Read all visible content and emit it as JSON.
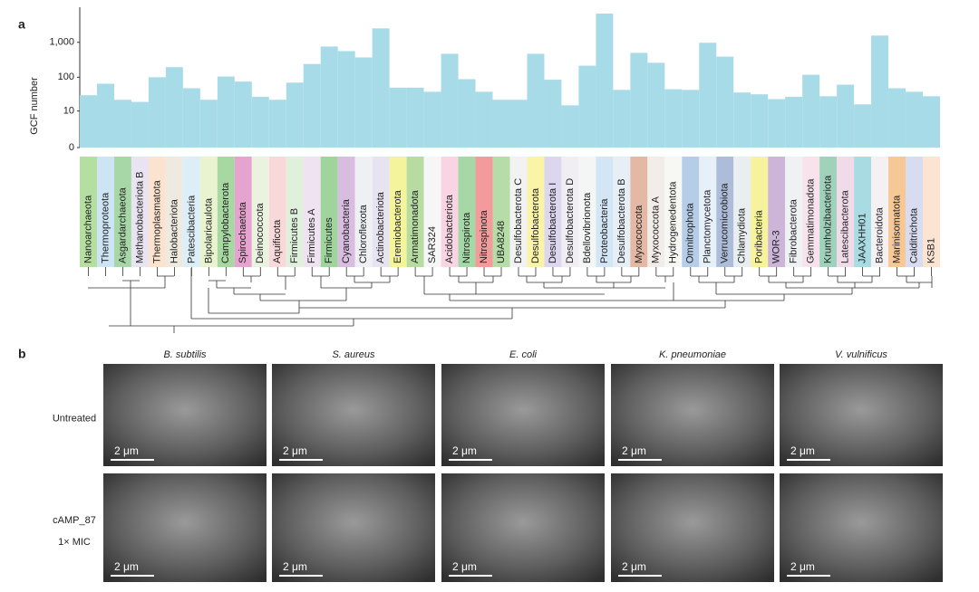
{
  "panel_labels": [
    "a",
    "b"
  ],
  "chart_data": {
    "type": "bar",
    "ylabel": "GCF number",
    "yscale": "log1p",
    "ylim": [
      0,
      10000
    ],
    "yticks": [
      0,
      10,
      100,
      {
        "value": 1000,
        "label": "1,000"
      }
    ],
    "color": "#a8dbe8",
    "categories": [
      "Nanoarchaeota",
      "Thermoproteota",
      "Asgardarchaeota",
      "Methanobacteriota B",
      "Thermoplasmatota",
      "Halobacteriota",
      "Patescibacteria",
      "Bipolaricaulota",
      "Campylobacterota",
      "Spirochaetota",
      "Deinococcota",
      "Aquificota",
      "Firmicutes B",
      "Firmicutes A",
      "Firmicutes",
      "Cyanobacteria",
      "Chloroflexota",
      "Actinobacteriota",
      "Eremiobacterota",
      "Armatimonadota",
      "SAR324",
      "Acidobacteriota",
      "Nitrospirota",
      "Nitrospinota",
      "UBA8248",
      "Desulfobacterota C",
      "Desulfobacterota",
      "Desulfobacterota I",
      "Desulfobacterota D",
      "Bdellovibrionota",
      "Proteobacteria",
      "Desulfobacterota B",
      "Myxococcota",
      "Myxococcota A",
      "Hydrogenedentota",
      "Omnitrophota",
      "Planctomycetota",
      "Verrucomicrobiota",
      "Chlamydiota",
      "Poribacteria",
      "WOR-3",
      "Fibrobacterota",
      "Gemmatimonadota",
      "Krumholzibacteriota",
      "Latescibacterota",
      "JAAXHH01",
      "Bacteroidota",
      "Marinisomatota",
      "Calditrichota",
      "KSB1"
    ],
    "values": [
      30,
      65,
      22,
      19,
      100,
      195,
      48,
      22,
      105,
      75,
      27,
      22,
      70,
      240,
      760,
      560,
      370,
      2500,
      50,
      50,
      38,
      470,
      88,
      38,
      22,
      22,
      470,
      85,
      15,
      215,
      6600,
      43,
      500,
      260,
      45,
      43,
      970,
      390,
      36,
      32,
      23,
      27,
      118,
      28,
      61,
      16,
      1560,
      48,
      38,
      28
    ],
    "label_colors": [
      "#b5dfa0",
      "#cde4f4",
      "#a7d7a6",
      "#e8e4f2",
      "#fbe3cf",
      "#efeadf",
      "#dceff8",
      "#e9f3d0",
      "#a8d8a2",
      "#e7a3cf",
      "#eaf3e0",
      "#f8d8d8",
      "#dff0dc",
      "#efe3f2",
      "#9fd49c",
      "#d9bde0",
      "#eef0f4",
      "#e6e4f1",
      "#f4f49c",
      "#b7dca2",
      "#f6f6f6",
      "#f9d5e4",
      "#a5d8a6",
      "#f39a9c",
      "#b6dca8",
      "#f2f2f2",
      "#fbf3a8",
      "#dcd7ee",
      "#f0edf3",
      "#f4f6f6",
      "#d3e6f5",
      "#e7eef6",
      "#e3b8a5",
      "#f3ede9",
      "#f7f7f4",
      "#b6cde8",
      "#e6f0f8",
      "#adbcd9",
      "#e9eef0",
      "#f6f39c",
      "#cdb5da",
      "#eef2f3",
      "#f8e3ec",
      "#9fd1bb",
      "#f2dbe8",
      "#a9dbe3",
      "#f5f1f3",
      "#f6c896",
      "#d7dcf1",
      "#fbe5d2"
    ]
  },
  "micrographs": {
    "columns": [
      "B. subtilis",
      "S. aureus",
      "E. coli",
      "K. pneumoniae",
      "V. vulnificus"
    ],
    "rows": [
      [
        "Untreated"
      ],
      [
        "cAMP_87",
        "1× MIC"
      ]
    ],
    "scale_bar": "2 μm"
  }
}
